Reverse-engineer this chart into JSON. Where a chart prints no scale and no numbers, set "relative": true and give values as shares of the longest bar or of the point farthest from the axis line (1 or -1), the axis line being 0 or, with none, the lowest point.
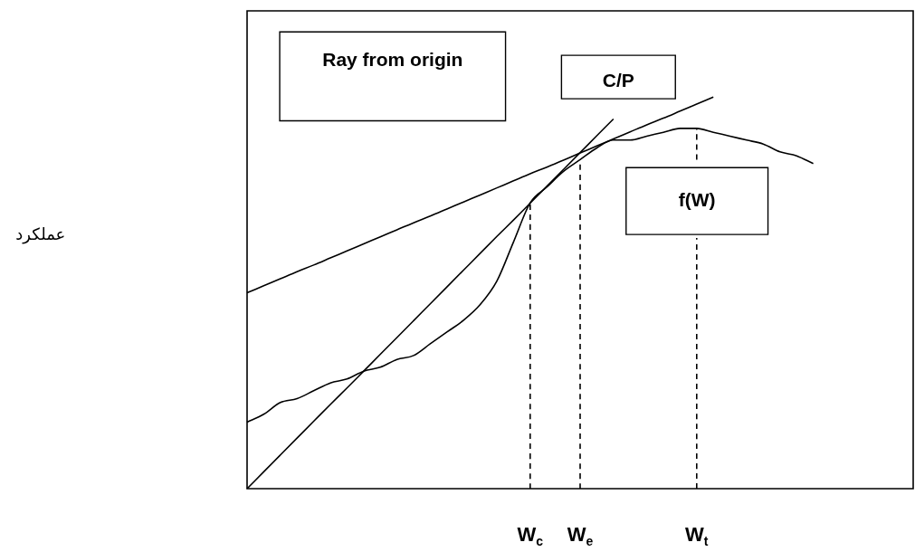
{
  "chart_data": {
    "type": "line",
    "relative": true,
    "annotations": [
      "Ray from origin",
      "C/P",
      "عملکرد"
    ],
    "legend": false,
    "marker": "none",
    "categories": [
      null,
      null,
      null,
      null,
      null,
      null,
      null,
      null,
      null,
      null,
      null,
      null,
      null,
      null,
      null,
      null,
      null,
      "W$_{c}$",
      null,
      null,
      "W$_{e}$",
      null,
      null,
      null,
      null,
      null,
      null,
      "W$_{t}$",
      null,
      null,
      null,
      null,
      null,
      null,
      null,
      null,
      null,
      null,
      null,
      null,
      null
    ],
    "series": [
      {
        "name": "f(W)",
        "color": "#000000",
        "values": [
          0.17,
          0.19,
          0.22,
          0.23,
          0.25,
          0.27,
          0.28,
          0.3,
          0.31,
          0.33,
          0.34,
          0.37,
          0.4,
          0.43,
          0.47,
          0.53,
          0.63,
          0.73,
          0.77,
          0.81,
          0.84,
          0.87,
          0.89,
          0.89,
          0.9,
          0.91,
          0.92,
          0.92,
          0.91,
          0.9,
          0.89,
          0.88,
          0.86,
          0.85,
          0.83,
          null,
          null,
          null,
          null,
          null,
          null
        ]
      },
      {
        "color": "#000000",
        "values": [
          0,
          0.043,
          0.086,
          0.129,
          0.172,
          0.215,
          0.257,
          0.3,
          0.343,
          0.386,
          0.429,
          0.472,
          0.515,
          0.558,
          0.601,
          0.644,
          0.686,
          0.729,
          0.772,
          0.815,
          0.858,
          0.901,
          0.944,
          null,
          null,
          null,
          null,
          null,
          null,
          null,
          null,
          null,
          null,
          null,
          null,
          null,
          null,
          null,
          null,
          null,
          null
        ]
      },
      {
        "color": "#000000",
        "values": [
          0.5,
          0.518,
          0.536,
          0.554,
          0.571,
          0.589,
          0.607,
          0.625,
          0.643,
          0.661,
          0.679,
          0.696,
          0.714,
          0.732,
          0.75,
          0.768,
          0.786,
          0.804,
          0.821,
          0.839,
          0.857,
          0.875,
          0.893,
          0.911,
          0.929,
          0.946,
          0.964,
          0.982,
          1.0,
          null,
          null,
          null,
          null,
          null,
          null,
          null,
          null,
          null,
          null,
          null,
          null
        ]
      },
      {
        "color": "#000000",
        "line_style": "dashed",
        "x": [
          "W$_{c}$",
          "W$_{c}$"
        ],
        "values": [
          0,
          0.73
        ]
      },
      {
        "color": "#000000",
        "line_style": "dashed",
        "x": [
          "W$_{e}$",
          "W$_{e}$"
        ],
        "values": [
          0,
          0.84
        ]
      },
      {
        "color": "#000000",
        "line_style": "dashed",
        "x": [
          "W$_{t}$",
          "W$_{t}$"
        ],
        "values": [
          0,
          0.64
        ]
      },
      {
        "color": "#000000",
        "line_style": "dashed",
        "x": [
          "W$_{t}$",
          "W$_{t}$"
        ],
        "values": [
          0.84,
          0.92
        ]
      }
    ]
  }
}
